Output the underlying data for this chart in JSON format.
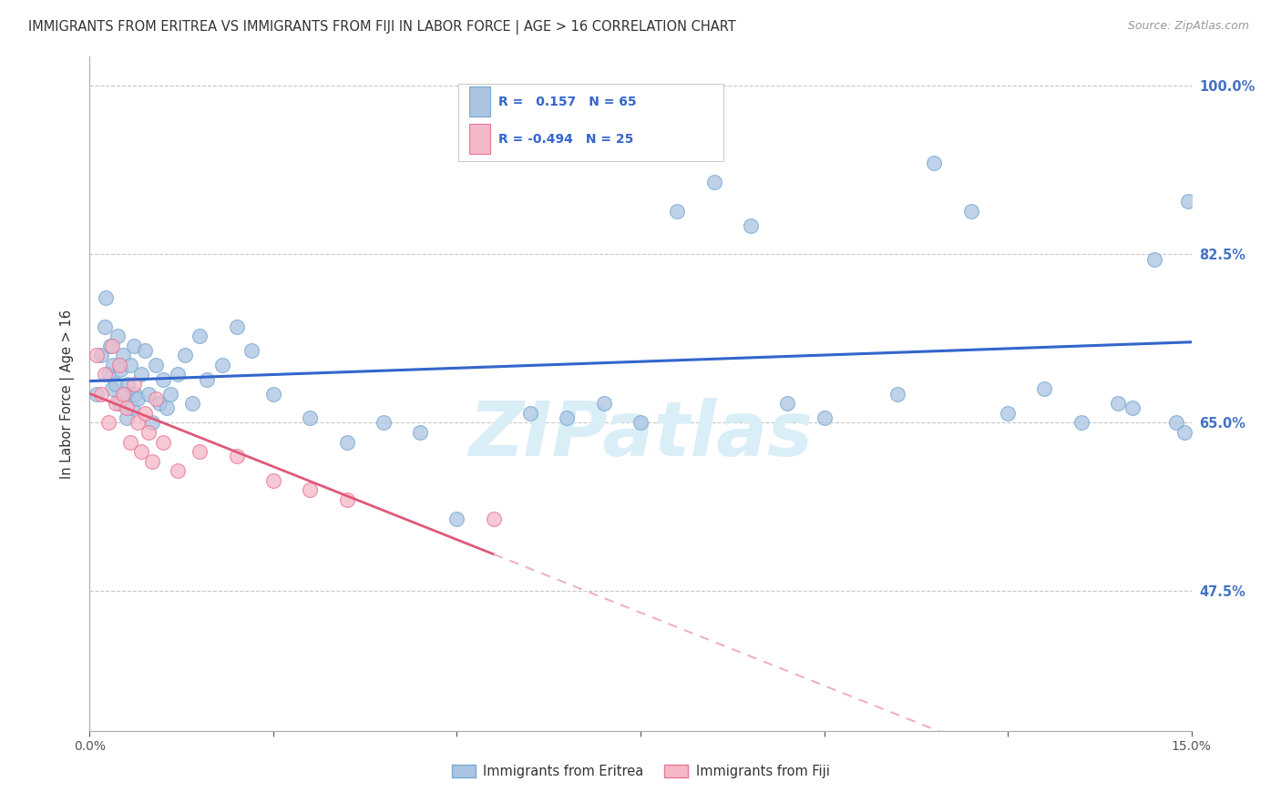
{
  "title": "IMMIGRANTS FROM ERITREA VS IMMIGRANTS FROM FIJI IN LABOR FORCE | AGE > 16 CORRELATION CHART",
  "source": "Source: ZipAtlas.com",
  "ylabel": "In Labor Force | Age > 16",
  "xlim": [
    0.0,
    15.0
  ],
  "ylim": [
    33.0,
    103.0
  ],
  "y_ticks": [
    47.5,
    65.0,
    82.5,
    100.0
  ],
  "y_tick_labels": [
    "47.5%",
    "65.0%",
    "82.5%",
    "100.0%"
  ],
  "eritrea_R": 0.157,
  "eritrea_N": 65,
  "fiji_R": -0.494,
  "fiji_N": 25,
  "eritrea_color": "#aac4e2",
  "eritrea_edge": "#7aaad0",
  "fiji_color": "#f5b8c8",
  "fiji_edge": "#e87898",
  "eritrea_line_color": "#3366cc",
  "fiji_line_color": "#e05878",
  "fiji_dash_color": "#f0b0c8",
  "watermark_text": "ZIPatlas",
  "watermark_color": "#daeef8",
  "legend_label_1": "Immigrants from Eritrea",
  "legend_label_2": "Immigrants from Fiji",
  "eritrea_x": [
    0.1,
    0.15,
    0.2,
    0.22,
    0.25,
    0.28,
    0.3,
    0.32,
    0.35,
    0.38,
    0.4,
    0.42,
    0.45,
    0.48,
    0.5,
    0.52,
    0.55,
    0.58,
    0.6,
    0.62,
    0.65,
    0.7,
    0.75,
    0.8,
    0.85,
    0.9,
    0.95,
    1.0,
    1.05,
    1.1,
    1.2,
    1.3,
    1.4,
    1.5,
    1.6,
    1.8,
    2.0,
    2.2,
    2.5,
    3.0,
    3.5,
    4.0,
    4.5,
    5.0,
    6.0,
    6.5,
    7.0,
    7.5,
    8.0,
    8.5,
    9.0,
    9.5,
    10.0,
    11.0,
    11.5,
    12.0,
    12.5,
    13.0,
    13.5,
    14.0,
    14.2,
    14.5,
    14.8,
    14.9,
    14.95
  ],
  "eritrea_y": [
    68.0,
    72.0,
    75.0,
    78.0,
    70.0,
    73.0,
    68.5,
    71.0,
    69.0,
    74.0,
    67.0,
    70.5,
    72.0,
    68.0,
    65.5,
    69.0,
    71.0,
    66.5,
    73.0,
    68.0,
    67.5,
    70.0,
    72.5,
    68.0,
    65.0,
    71.0,
    67.0,
    69.5,
    66.5,
    68.0,
    70.0,
    72.0,
    67.0,
    74.0,
    69.5,
    71.0,
    75.0,
    72.5,
    68.0,
    65.5,
    63.0,
    65.0,
    64.0,
    55.0,
    66.0,
    65.5,
    67.0,
    65.0,
    87.0,
    90.0,
    85.5,
    67.0,
    65.5,
    68.0,
    92.0,
    87.0,
    66.0,
    68.5,
    65.0,
    67.0,
    66.5,
    82.0,
    65.0,
    64.0,
    88.0
  ],
  "fiji_x": [
    0.1,
    0.15,
    0.2,
    0.25,
    0.3,
    0.35,
    0.4,
    0.45,
    0.5,
    0.55,
    0.6,
    0.65,
    0.7,
    0.75,
    0.8,
    0.85,
    0.9,
    1.0,
    1.2,
    1.5,
    2.0,
    2.5,
    3.0,
    3.5,
    5.5
  ],
  "fiji_y": [
    72.0,
    68.0,
    70.0,
    65.0,
    73.0,
    67.0,
    71.0,
    68.0,
    66.5,
    63.0,
    69.0,
    65.0,
    62.0,
    66.0,
    64.0,
    61.0,
    67.5,
    63.0,
    60.0,
    62.0,
    61.5,
    59.0,
    58.0,
    57.0,
    55.0
  ]
}
